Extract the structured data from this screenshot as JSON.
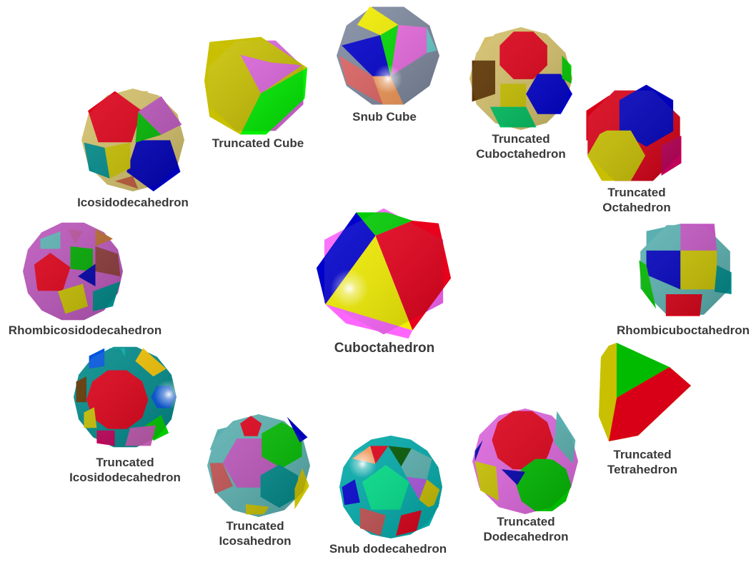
{
  "solids": [
    {
      "key": "cuboctahedron",
      "lines": [
        "Cuboctahedron"
      ],
      "colors": [
        "#e8001c",
        "#0000cc",
        "#f2ee00",
        "#00cc00",
        "#ff66ff"
      ]
    },
    {
      "key": "snub-cube",
      "lines": [
        "Snub Cube"
      ],
      "colors": [
        "#0000cc",
        "#00dd00",
        "#f2ee00",
        "#e06464",
        "#e96ae0",
        "#66cccc",
        "#f59a58",
        "#7f8aa0"
      ]
    },
    {
      "key": "truncated-cube",
      "lines": [
        "Truncated Cube"
      ],
      "colors": [
        "#c8c000",
        "#e8001c",
        "#00ee00",
        "#dd66dd"
      ]
    },
    {
      "key": "truncated-cuboctahedron",
      "lines": [
        "Truncated",
        "Cuboctahedron"
      ],
      "colors": [
        "#dd0018",
        "#5c3300",
        "#c8c000",
        "#0000cc",
        "#00c060",
        "#00cc00",
        "#d4c06a"
      ]
    },
    {
      "key": "truncated-octahedron",
      "lines": [
        "Truncated",
        "Octahedron"
      ],
      "colors": [
        "#0000bb",
        "#c8bf00",
        "#c0005a",
        "#d80016"
      ]
    },
    {
      "key": "icosidodecahedron",
      "lines": [
        "Icosidodecahedron"
      ],
      "colors": [
        "#dd0018",
        "#0000bb",
        "#c8c000",
        "#00b800",
        "#bb55bb",
        "#008a8a",
        "#c05a3a",
        "#d4c06a"
      ]
    },
    {
      "key": "rhombicuboctahedron",
      "lines": [
        "Rhombicuboctahedron"
      ],
      "colors": [
        "#c8c000",
        "#0000bb",
        "#c055c0",
        "#00b800",
        "#008a8a",
        "#d80016",
        "#5ab0b0"
      ]
    },
    {
      "key": "rhombicosidodecahedron",
      "lines": [
        "Rhombicosidodecahedron"
      ],
      "colors": [
        "#dd0018",
        "#00aa00",
        "#0000aa",
        "#c8c000",
        "#8c3a3a",
        "#b8509a",
        "#008a8a",
        "#b86a30",
        "#5ab0b0",
        "#bb55bb"
      ]
    },
    {
      "key": "truncated-tetrahedron",
      "lines": [
        "Truncated",
        "Tetrahedron"
      ],
      "colors": [
        "#00bb00",
        "#d80016",
        "#c8c000"
      ]
    },
    {
      "key": "truncated-icosidodecahedron",
      "lines": [
        "Truncated",
        "Icosidodecahedron"
      ],
      "colors": [
        "#dd0018",
        "#0055dd",
        "#00cc00",
        "#f0c000",
        "#c05ab0",
        "#5c3300",
        "#c8c000",
        "#c0005a",
        "#00aaaa",
        "#008a8a"
      ]
    },
    {
      "key": "truncated-dodecahedron",
      "lines": [
        "Truncated",
        "Dodecahedron"
      ],
      "colors": [
        "#dd0018",
        "#00bb00",
        "#c8c000",
        "#0000aa",
        "#5ab0b0",
        "#dd66dd"
      ]
    },
    {
      "key": "truncated-icosahedron",
      "lines": [
        "Truncated",
        "Icosahedron"
      ],
      "colors": [
        "#bb55bb",
        "#00bb00",
        "#008a8a",
        "#dd0018",
        "#c05050",
        "#0000bb",
        "#c8c000",
        "#5ab0b0"
      ]
    },
    {
      "key": "snub-dodecahedron",
      "lines": [
        "Snub dodecahedron"
      ],
      "colors": [
        "#00dd88",
        "#005500",
        "#aa55dd",
        "#dd0018",
        "#5ab0b0",
        "#c8c000",
        "#c05050",
        "#0000cc",
        "#f59a58",
        "#00aaaa"
      ]
    }
  ]
}
